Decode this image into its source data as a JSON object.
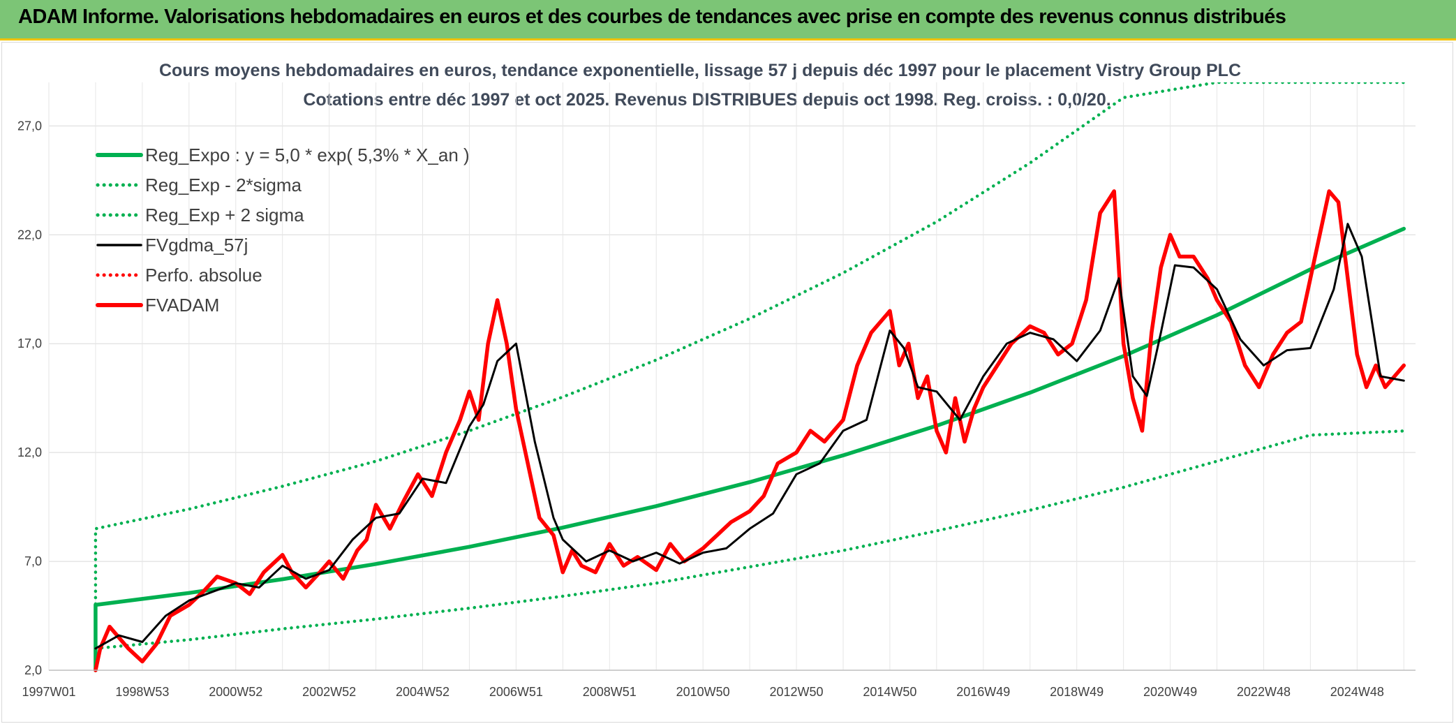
{
  "header": {
    "title": "ADAM Informe. Valorisations hebdomadaires en euros et des courbes de tendances avec prise en compte des revenus connus distribués"
  },
  "chart_data": {
    "type": "line",
    "title": "Cours moyens hebdomadaires en euros, tendance exponentielle, lissage 57 j depuis déc 1997 pour le placement Vistry Group PLC",
    "subtitle": "Cotations entre déc 1997 et oct 2025. Revenus DISTRIBUES depuis oct 1998. Reg. croiss. : 0,0/20.",
    "xlabel": "",
    "ylabel": "",
    "ylim": [
      2.0,
      29.0
    ],
    "y_ticks": [
      "2,0",
      "7,0",
      "12,0",
      "17,0",
      "22,0",
      "27,0"
    ],
    "y_tick_values": [
      2,
      7,
      12,
      17,
      22,
      27
    ],
    "x_ticks": [
      "1997W01",
      "1998W53",
      "2000W52",
      "2002W52",
      "2004W52",
      "2006W51",
      "2008W51",
      "2010W50",
      "2012W50",
      "2014W50",
      "2016W49",
      "2018W49",
      "2020W49",
      "2022W48",
      "2024W48"
    ],
    "x_tick_years": [
      1997.0,
      1999.0,
      2001.0,
      2003.0,
      2005.0,
      2007.0,
      2009.0,
      2011.0,
      2013.0,
      2015.0,
      2017.0,
      2019.0,
      2021.0,
      2023.0,
      2025.0
    ],
    "x_range": [
      1997.0,
      2026.25
    ],
    "grid": true,
    "legend_position": "top-left",
    "series": [
      {
        "name": "Reg_Expo : y = 5,0 * exp( 5,3% *  X_an )",
        "color": "#00b050",
        "style": "solid-thick",
        "x": [
          1998.0,
          1998.0,
          2000.0,
          2002.0,
          2004.0,
          2006.0,
          2008.0,
          2010.0,
          2012.0,
          2014.0,
          2016.0,
          2018.0,
          2020.0,
          2022.0,
          2024.0,
          2026.0
        ],
        "values": [
          2.0,
          5.0,
          5.55,
          6.18,
          6.88,
          7.67,
          8.55,
          9.54,
          10.64,
          11.87,
          13.23,
          14.75,
          16.43,
          18.31,
          20.41,
          22.28
        ]
      },
      {
        "name": "Reg_Exp - 2*sigma",
        "color": "#00b050",
        "style": "dotted",
        "x": [
          1998.0,
          2000.0,
          2002.0,
          2004.0,
          2006.0,
          2008.0,
          2010.0,
          2012.0,
          2014.0,
          2016.0,
          2018.0,
          2020.0,
          2022.0,
          2024.0,
          2026.0
        ],
        "values": [
          3.0,
          3.4,
          3.9,
          4.35,
          4.85,
          5.4,
          6.0,
          6.75,
          7.5,
          8.4,
          9.35,
          10.4,
          11.6,
          12.8,
          12.99
        ]
      },
      {
        "name": "Reg_Exp + 2 sigma",
        "color": "#00b050",
        "style": "dotted",
        "x": [
          1998.0,
          1998.0,
          2000.0,
          2002.0,
          2004.0,
          2006.0,
          2008.0,
          2010.0,
          2012.0,
          2014.0,
          2016.0,
          2018.0,
          2020.0,
          2022.0,
          2024.0,
          2026.0
        ],
        "values": [
          3.0,
          8.5,
          9.4,
          10.45,
          11.6,
          13.0,
          14.55,
          16.25,
          18.15,
          20.25,
          22.6,
          25.3,
          28.3,
          29.0,
          29.0,
          29.0
        ]
      },
      {
        "name": "FVgdma_57j",
        "color": "#000000",
        "style": "solid",
        "x": [
          1998.0,
          1998.5,
          1999.0,
          1999.5,
          2000.0,
          2000.5,
          2001.0,
          2001.5,
          2002.0,
          2002.5,
          2003.0,
          2003.5,
          2004.0,
          2004.5,
          2005.0,
          2005.5,
          2006.0,
          2006.3,
          2006.6,
          2007.0,
          2007.4,
          2007.8,
          2008.0,
          2008.5,
          2009.0,
          2009.5,
          2010.0,
          2010.5,
          2011.0,
          2011.5,
          2012.0,
          2012.5,
          2013.0,
          2013.5,
          2014.0,
          2014.5,
          2015.0,
          2015.3,
          2015.6,
          2016.0,
          2016.5,
          2017.0,
          2017.5,
          2018.0,
          2018.5,
          2019.0,
          2019.5,
          2019.9,
          2020.2,
          2020.5,
          2020.8,
          2021.1,
          2021.5,
          2022.0,
          2022.5,
          2023.0,
          2023.5,
          2024.0,
          2024.5,
          2024.8,
          2025.1,
          2025.5,
          2026.0
        ],
        "values": [
          3.0,
          3.6,
          3.3,
          4.5,
          5.2,
          5.6,
          6.0,
          5.8,
          6.8,
          6.2,
          6.6,
          8.0,
          9.0,
          9.2,
          10.8,
          10.6,
          13.2,
          14.2,
          16.2,
          17.0,
          12.5,
          9.0,
          8.0,
          7.0,
          7.5,
          7.0,
          7.4,
          6.9,
          7.4,
          7.6,
          8.5,
          9.2,
          11.0,
          11.5,
          13.0,
          13.5,
          17.6,
          16.8,
          15.0,
          14.8,
          13.5,
          15.5,
          17.0,
          17.5,
          17.2,
          16.2,
          17.6,
          20.0,
          15.5,
          14.6,
          17.5,
          20.6,
          20.5,
          19.5,
          17.2,
          16.0,
          16.7,
          16.8,
          19.5,
          22.5,
          21.0,
          15.5,
          15.3
        ]
      },
      {
        "name": "Perfo. absolue",
        "color": "#ff0000",
        "style": "dotted",
        "x": [],
        "values": []
      },
      {
        "name": "FVADAM",
        "color": "#ff0000",
        "style": "solid-thick",
        "x": [
          1998.0,
          1998.1,
          1998.3,
          1998.5,
          1998.7,
          1999.0,
          1999.3,
          1999.6,
          2000.0,
          2000.3,
          2000.6,
          2001.0,
          2001.3,
          2001.6,
          2002.0,
          2002.2,
          2002.5,
          2002.8,
          2003.0,
          2003.3,
          2003.6,
          2003.8,
          2004.0,
          2004.3,
          2004.6,
          2004.9,
          2005.2,
          2005.5,
          2005.8,
          2006.0,
          2006.2,
          2006.4,
          2006.6,
          2006.8,
          2007.0,
          2007.2,
          2007.5,
          2007.8,
          2008.0,
          2008.2,
          2008.4,
          2008.7,
          2009.0,
          2009.3,
          2009.6,
          2010.0,
          2010.3,
          2010.6,
          2011.0,
          2011.3,
          2011.6,
          2012.0,
          2012.3,
          2012.6,
          2013.0,
          2013.3,
          2013.6,
          2014.0,
          2014.3,
          2014.6,
          2015.0,
          2015.2,
          2015.4,
          2015.6,
          2015.8,
          2016.0,
          2016.2,
          2016.4,
          2016.6,
          2016.8,
          2017.0,
          2017.3,
          2017.6,
          2018.0,
          2018.3,
          2018.6,
          2018.9,
          2019.2,
          2019.5,
          2019.8,
          2020.0,
          2020.2,
          2020.4,
          2020.6,
          2020.8,
          2021.0,
          2021.2,
          2021.5,
          2021.8,
          2022.0,
          2022.3,
          2022.6,
          2022.9,
          2023.2,
          2023.5,
          2023.8,
          2024.0,
          2024.2,
          2024.4,
          2024.6,
          2024.8,
          2025.0,
          2025.2,
          2025.4,
          2025.6,
          2025.8,
          2026.0
        ],
        "values": [
          2.0,
          3.0,
          4.0,
          3.5,
          3.0,
          2.4,
          3.2,
          4.5,
          5.0,
          5.6,
          6.3,
          6.0,
          5.5,
          6.5,
          7.3,
          6.5,
          5.8,
          6.5,
          7.0,
          6.2,
          7.5,
          8.0,
          9.6,
          8.5,
          9.8,
          11.0,
          10.0,
          12.0,
          13.5,
          14.8,
          13.5,
          17.0,
          19.0,
          17.0,
          14.0,
          12.0,
          9.0,
          8.2,
          6.5,
          7.5,
          6.8,
          6.5,
          7.8,
          6.8,
          7.2,
          6.6,
          7.8,
          7.0,
          7.6,
          8.2,
          8.8,
          9.3,
          10.0,
          11.5,
          12.0,
          13.0,
          12.5,
          13.5,
          16.0,
          17.5,
          18.5,
          16.0,
          17.0,
          14.5,
          15.5,
          13.0,
          12.0,
          14.5,
          12.5,
          14.0,
          15.0,
          16.0,
          17.0,
          17.8,
          17.5,
          16.5,
          17.0,
          19.0,
          23.0,
          24.0,
          17.0,
          14.5,
          13.0,
          17.5,
          20.5,
          22.0,
          21.0,
          21.0,
          20.0,
          19.0,
          18.0,
          16.0,
          15.0,
          16.5,
          17.5,
          18.0,
          20.0,
          22.0,
          24.0,
          23.5,
          20.0,
          16.5,
          15.0,
          16.0,
          15.0,
          15.5,
          16.0
        ]
      }
    ]
  }
}
